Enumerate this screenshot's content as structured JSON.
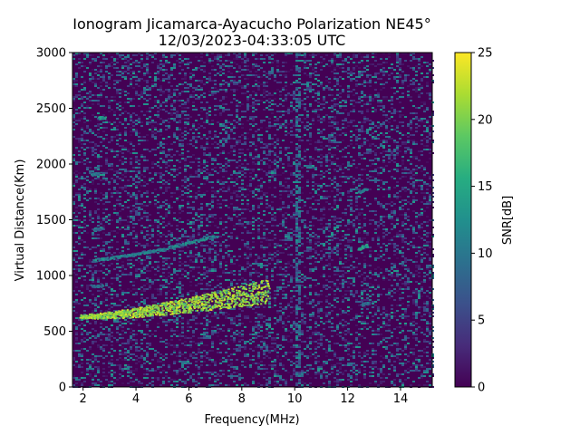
{
  "chart_data": {
    "type": "heatmap",
    "title": "Ionogram Jicamarca-Ayacucho Polarization NE45°",
    "subtitle": "12/03/2023-04:33:05 UTC",
    "xlabel": "Frequency(MHz)",
    "ylabel": "Virtual Distance(Km)",
    "xlim": [
      1.6,
      15.2
    ],
    "ylim": [
      0,
      3000
    ],
    "xticks": [
      "2",
      "4",
      "6",
      "8",
      "10",
      "12",
      "14"
    ],
    "yticks": [
      "0",
      "500",
      "1000",
      "1500",
      "2000",
      "2500",
      "3000"
    ],
    "colorbar": {
      "label": "SNR[dB]",
      "range": [
        0,
        25
      ],
      "ticks": [
        "0",
        "5",
        "10",
        "15",
        "20",
        "25"
      ],
      "colormap": "viridis"
    },
    "grid": false,
    "traces": [
      {
        "x": [
          1.9,
          2.5,
          3.0,
          3.5,
          4.0,
          4.5,
          5.0,
          5.5,
          6.0,
          6.5,
          7.0,
          7.5,
          8.0,
          8.5,
          9.0
        ],
        "y": [
          635,
          642,
          650,
          660,
          672,
          688,
          705,
          722,
          740,
          760,
          782,
          800,
          820,
          845,
          870
        ],
        "snr": 24
      },
      {
        "x": [
          2.4,
          3.0,
          3.5,
          4.0,
          4.5,
          5.0,
          5.5,
          6.0,
          6.5,
          7.0
        ],
        "y": [
          1140,
          1160,
          1180,
          1200,
          1220,
          1240,
          1270,
          1300,
          1330,
          1360
        ],
        "snr": 14
      },
      {
        "x": [
          2.6,
          2.8
        ],
        "y": [
          2420,
          2420
        ],
        "snr": 16
      },
      {
        "x": [
          2.3,
          2.6
        ],
        "y": [
          1910,
          1920
        ],
        "snr": 14
      },
      {
        "x": [
          2.4,
          2.7
        ],
        "y": [
          1420,
          1425
        ],
        "snr": 12
      },
      {
        "x": [
          2.3,
          2.7
        ],
        "y": [
          910,
          915
        ],
        "snr": 12
      },
      {
        "x": [
          12.4,
          12.7
        ],
        "y": [
          1750,
          1780
        ],
        "snr": 14
      },
      {
        "x": [
          12.4,
          12.7
        ],
        "y": [
          1240,
          1280
        ],
        "snr": 17
      },
      {
        "x": [
          12.5,
          12.8
        ],
        "y": [
          740,
          760
        ],
        "snr": 11
      }
    ]
  }
}
